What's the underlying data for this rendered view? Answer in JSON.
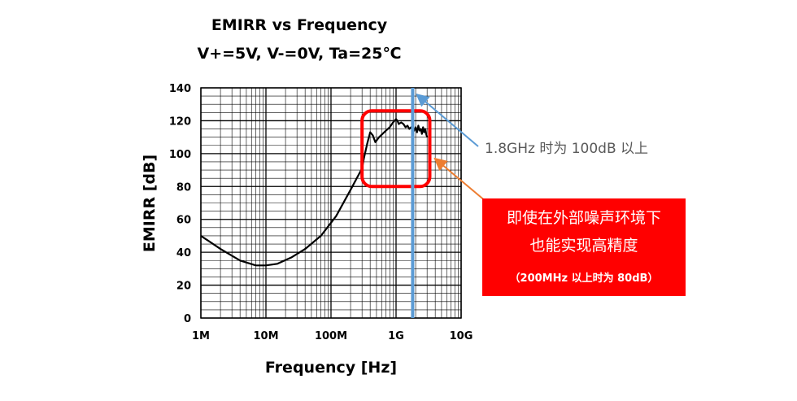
{
  "chart_data": {
    "type": "line",
    "title": "EMIRR vs Frequency",
    "subtitle": "V+=5V, V-=0V, Ta=25℃",
    "xlabel": "Frequency [Hz]",
    "ylabel": "EMIRR [dB]",
    "x_scale": "log",
    "xlim": [
      1000000,
      10000000000
    ],
    "ylim": [
      0,
      140
    ],
    "grid": true,
    "x_ticks": [
      {
        "value": 1000000,
        "label": "1M"
      },
      {
        "value": 10000000,
        "label": "10M"
      },
      {
        "value": 100000000,
        "label": "100M"
      },
      {
        "value": 1000000000,
        "label": "1G"
      },
      {
        "value": 10000000000,
        "label": "10G"
      }
    ],
    "y_ticks": [
      0,
      20,
      40,
      60,
      80,
      100,
      120,
      140
    ],
    "series": [
      {
        "color": "#000000",
        "x": [
          1000000,
          2000000,
          4000000,
          7000000,
          10000000,
          15000000,
          25000000,
          40000000,
          70000000,
          120000000,
          200000000,
          300000000,
          320000000,
          360000000,
          400000000,
          440000000,
          480000000,
          550000000,
          620000000,
          700000000,
          800000000,
          900000000,
          950000000,
          1000000000,
          1050000000,
          1100000000,
          1200000000,
          1300000000,
          1400000000,
          1500000000,
          1600000000,
          1700000000,
          1800000000,
          1900000000,
          2000000000,
          2100000000,
          2200000000,
          2300000000,
          2400000000,
          2500000000,
          2600000000,
          2700000000,
          2800000000,
          2900000000,
          3000000000
        ],
        "y": [
          50,
          42,
          35,
          32,
          32,
          33,
          37,
          42,
          50,
          62,
          78,
          91,
          97,
          106,
          113,
          111,
          107,
          110,
          112,
          114,
          116,
          119,
          120,
          121,
          120,
          118,
          119,
          118,
          116,
          117,
          115,
          116,
          115,
          114,
          116,
          113,
          117,
          114,
          115,
          112,
          116,
          113,
          115,
          112,
          110
        ]
      }
    ],
    "annotations": {
      "marker_line_x": 1800000000,
      "marker_line_color": "#5b9bd5",
      "highlight_box": {
        "x_range": [
          300000000,
          3300000000
        ],
        "y_range": [
          80,
          126
        ],
        "color": "#ff0000"
      },
      "note_1": "1.8GHz 时为 100dB 以上",
      "note_2_line1": "即使在外部噪声环境下",
      "note_2_line2": "也能实现高精度",
      "note_2_line3": "（200MHz 以上时为 80dB）",
      "note_2_bg": "#ff0000",
      "arrow_note_1_color": "#5b9bd5",
      "arrow_note_2_color": "#ed7d31"
    }
  }
}
